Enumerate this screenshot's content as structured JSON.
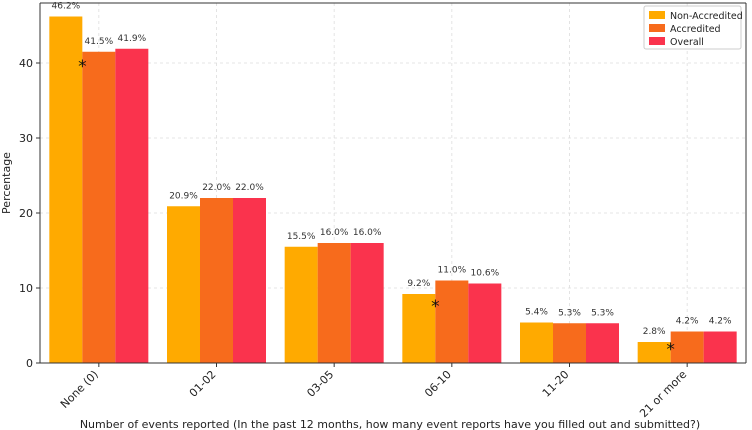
{
  "chart_data": {
    "type": "bar",
    "title": "",
    "xlabel": "Number of events reported (In the past 12 months, how many event reports have you filled out and submitted?)",
    "ylabel": "Percentage",
    "ylim": [
      0,
      48
    ],
    "yticks": [
      0,
      10,
      20,
      30,
      40
    ],
    "grid": true,
    "legend_position": "top-right",
    "categories": [
      "None (0)",
      "01-02",
      "03-05",
      "06-10",
      "11-20",
      "21 or more"
    ],
    "series": [
      {
        "name": "Non-Accredited",
        "color": "#FFAA00",
        "values": [
          46.2,
          20.9,
          15.5,
          9.2,
          5.4,
          2.8
        ],
        "labels": [
          "46.2%",
          "20.9%",
          "15.5%",
          "9.2%",
          "5.4%",
          "2.8%"
        ]
      },
      {
        "name": "Accredited",
        "color": "#F76B1C",
        "values": [
          41.5,
          22.0,
          16.0,
          11.0,
          5.3,
          4.2
        ],
        "labels": [
          "41.5%",
          "22.0%",
          "16.0%",
          "11.0%",
          "5.3%",
          "4.2%"
        ]
      },
      {
        "name": "Overall",
        "color": "#FA334D",
        "values": [
          41.9,
          22.0,
          16.0,
          10.6,
          5.3,
          4.2
        ],
        "labels": [
          "41.9%",
          "22.0%",
          "16.0%",
          "10.6%",
          "5.3%",
          "4.2%"
        ]
      }
    ],
    "significance_markers": [
      {
        "category": "None (0)",
        "symbol": "*",
        "value": 40
      },
      {
        "category": "06-10",
        "symbol": "*",
        "value": 8
      },
      {
        "category": "21 or more",
        "symbol": "*",
        "value": 2.3
      }
    ]
  }
}
